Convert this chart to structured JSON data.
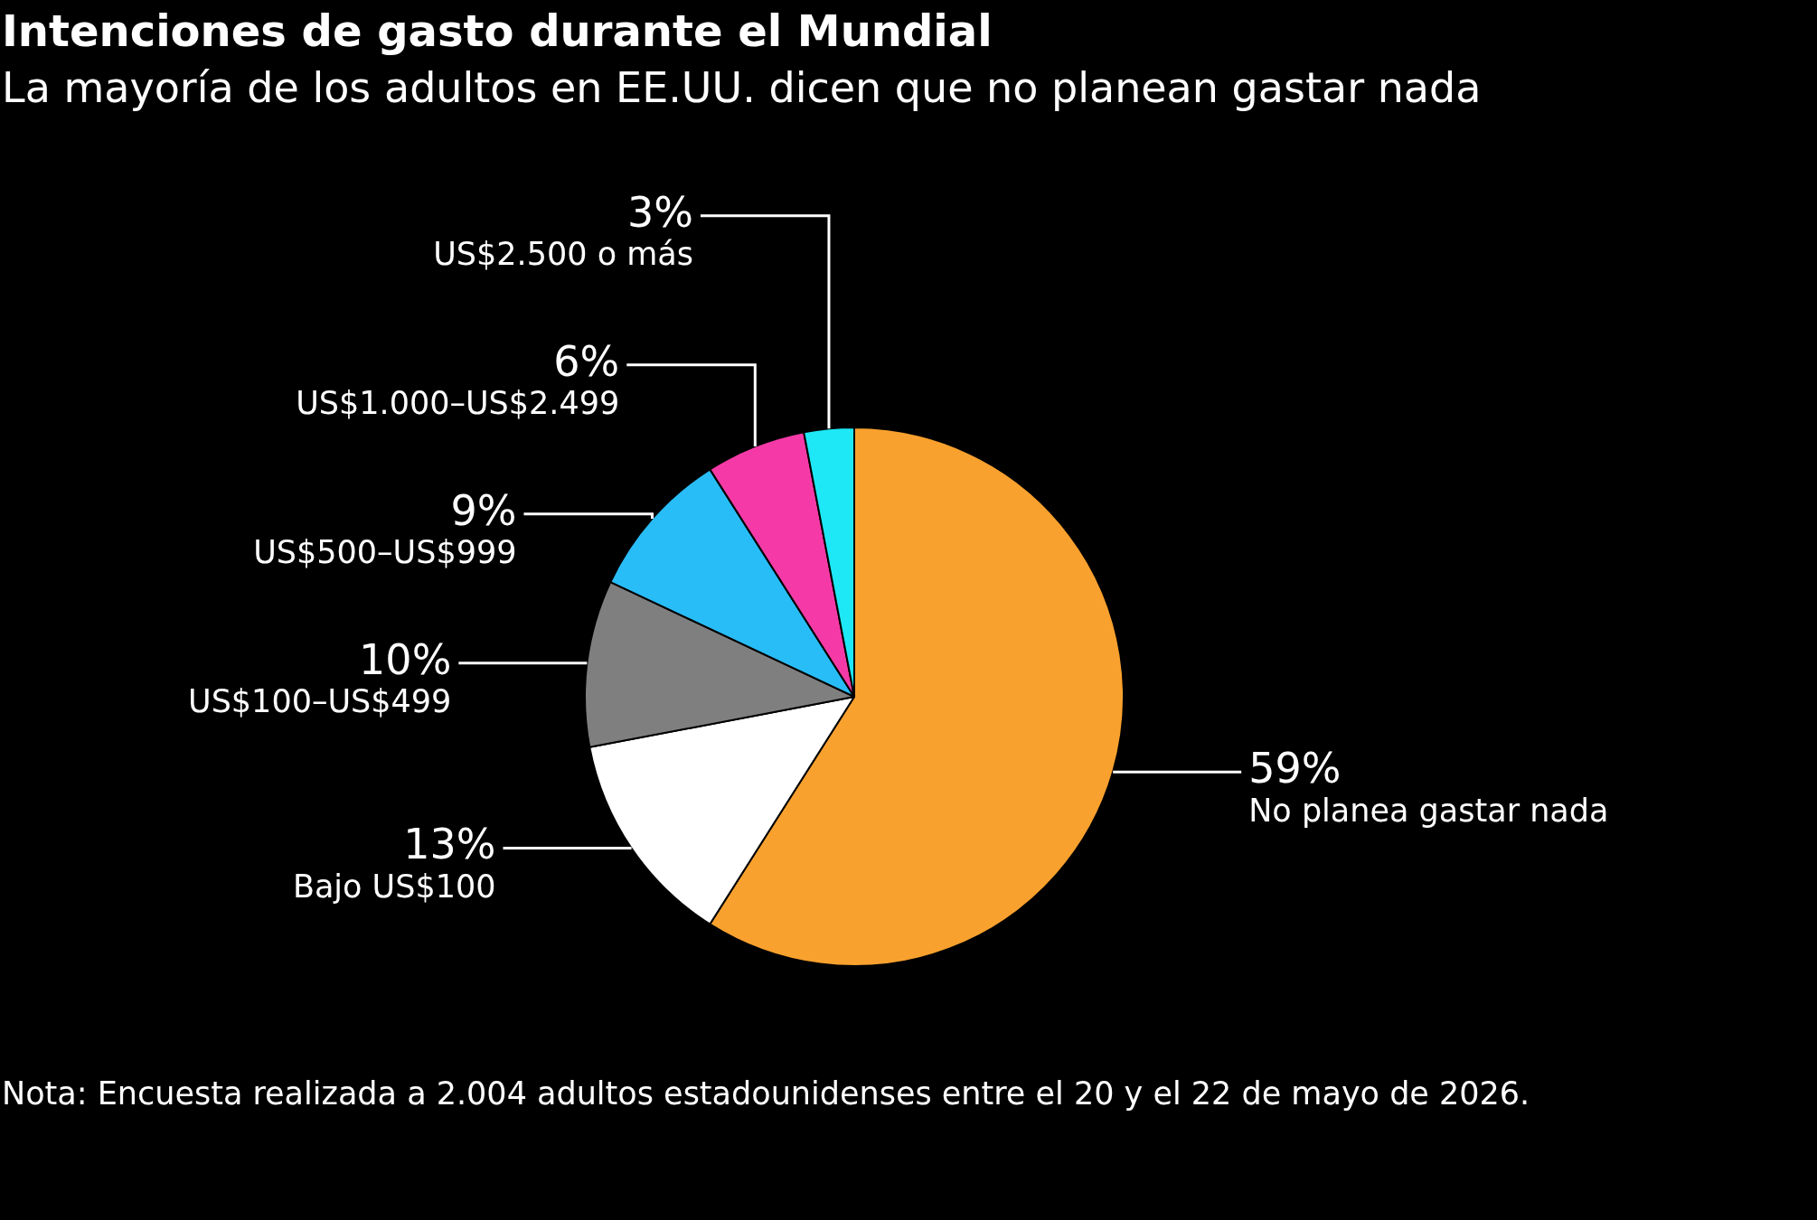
{
  "chart_data": {
    "type": "pie",
    "title": "Intenciones de gasto durante el Mundial",
    "subtitle": "La mayoría de los adultos en EE.UU. dicen que no planean gastar nada",
    "categories": [
      "No planea gastar nada",
      "Bajo US$100",
      "US$100–US$499",
      "US$500–US$999",
      "US$1.000–US$2.499",
      "US$2.500 o más"
    ],
    "values": [
      59,
      13,
      10,
      9,
      6,
      3
    ],
    "colors": [
      "#f9a12e",
      "#ffffff",
      "#7f7f7f",
      "#29bdf7",
      "#f53aa7",
      "#1ee8f5"
    ],
    "value_labels": [
      "59%",
      "13%",
      "10%",
      "9%",
      "6%",
      "3%"
    ],
    "legend": false,
    "annotations": [
      "Nota: Encuesta realizada a 2.004 adultos estadounidenses entre el 20 y el 22 de mayo de 2026."
    ]
  }
}
